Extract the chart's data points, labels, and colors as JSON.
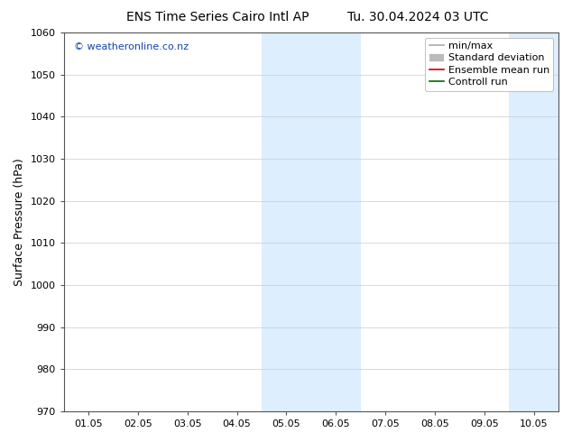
{
  "title_left": "ENS Time Series Cairo Intl AP",
  "title_right": "Tu. 30.04.2024 03 UTC",
  "ylabel": "Surface Pressure (hPa)",
  "ylim": [
    970,
    1060
  ],
  "yticks": [
    970,
    980,
    990,
    1000,
    1010,
    1020,
    1030,
    1040,
    1050,
    1060
  ],
  "xtick_labels": [
    "01.05",
    "02.05",
    "03.05",
    "04.05",
    "05.05",
    "06.05",
    "07.05",
    "08.05",
    "09.05",
    "10.05"
  ],
  "x_values": [
    0,
    1,
    2,
    3,
    4,
    5,
    6,
    7,
    8,
    9
  ],
  "xlim": [
    -0.5,
    9.5
  ],
  "shaded_bands": [
    {
      "x_start": 3.5,
      "x_end": 5.5
    },
    {
      "x_start": 8.5,
      "x_end": 9.5
    }
  ],
  "shade_color": "#ddeeff",
  "watermark_text": "© weatheronline.co.nz",
  "watermark_color": "#1144aa",
  "legend_entries": [
    {
      "label": "min/max",
      "color": "#aaaaaa",
      "style": "line"
    },
    {
      "label": "Standard deviation",
      "color": "#bbbbbb",
      "style": "thick"
    },
    {
      "label": "Ensemble mean run",
      "color": "#cc0000",
      "style": "line"
    },
    {
      "label": "Controll run",
      "color": "#006600",
      "style": "line"
    }
  ],
  "background_color": "#ffffff",
  "grid_color": "#cccccc",
  "title_fontsize": 10,
  "watermark_fontsize": 8,
  "ylabel_fontsize": 9,
  "tick_fontsize": 8,
  "legend_fontsize": 8
}
